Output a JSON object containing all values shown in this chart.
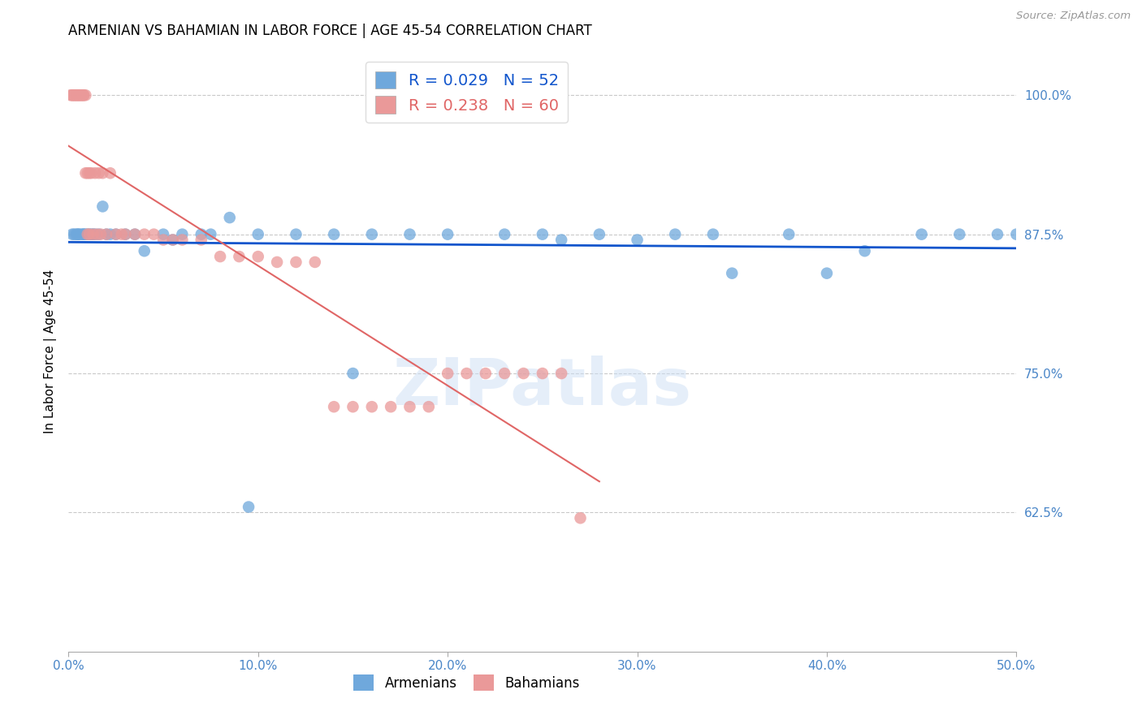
{
  "title": "ARMENIAN VS BAHAMIAN IN LABOR FORCE | AGE 45-54 CORRELATION CHART",
  "source": "Source: ZipAtlas.com",
  "ylabel": "In Labor Force | Age 45-54",
  "xlim": [
    0.0,
    0.5
  ],
  "ylim": [
    0.5,
    1.04
  ],
  "xtick_positions": [
    0.0,
    0.1,
    0.2,
    0.3,
    0.4,
    0.5
  ],
  "xtick_labels": [
    "0.0%",
    "10.0%",
    "20.0%",
    "30.0%",
    "40.0%",
    "50.0%"
  ],
  "ytick_positions": [
    0.625,
    0.75,
    0.875,
    1.0
  ],
  "ytick_labels": [
    "62.5%",
    "75.0%",
    "87.5%",
    "100.0%"
  ],
  "armenian_color": "#6fa8dc",
  "bahamian_color": "#ea9999",
  "armenian_line_color": "#1155cc",
  "bahamian_line_color": "#e06666",
  "R_armenian": 0.029,
  "N_armenian": 52,
  "R_bahamian": 0.238,
  "N_bahamian": 60,
  "legend_armenians": "Armenians",
  "legend_bahamians": "Bahamians",
  "watermark": "ZIPatlas",
  "title_fontsize": 12,
  "tick_label_color": "#4a86c8",
  "grid_color": "#bbbbbb",
  "marker_size": 110,
  "marker_alpha": 0.75,
  "arm_x": [
    0.002,
    0.003,
    0.004,
    0.005,
    0.005,
    0.006,
    0.007,
    0.008,
    0.008,
    0.009,
    0.01,
    0.011,
    0.012,
    0.013,
    0.014,
    0.016,
    0.018,
    0.02,
    0.022,
    0.025,
    0.03,
    0.035,
    0.04,
    0.05,
    0.06,
    0.07,
    0.085,
    0.1,
    0.12,
    0.14,
    0.16,
    0.18,
    0.2,
    0.23,
    0.26,
    0.3,
    0.34,
    0.38,
    0.42,
    0.45,
    0.47,
    0.49,
    0.5,
    0.32,
    0.28,
    0.35,
    0.4,
    0.15,
    0.25,
    0.055,
    0.075,
    0.095
  ],
  "arm_y": [
    0.875,
    0.875,
    0.875,
    0.875,
    0.875,
    0.875,
    0.875,
    0.875,
    0.875,
    0.875,
    0.875,
    0.875,
    0.875,
    0.875,
    0.875,
    0.875,
    0.9,
    0.875,
    0.875,
    0.875,
    0.875,
    0.875,
    0.86,
    0.875,
    0.875,
    0.875,
    0.89,
    0.875,
    0.875,
    0.875,
    0.875,
    0.875,
    0.875,
    0.875,
    0.87,
    0.87,
    0.875,
    0.875,
    0.86,
    0.875,
    0.875,
    0.875,
    0.875,
    0.875,
    0.875,
    0.84,
    0.84,
    0.75,
    0.875,
    0.87,
    0.875,
    0.63
  ],
  "bah_x": [
    0.001,
    0.002,
    0.002,
    0.003,
    0.003,
    0.004,
    0.004,
    0.005,
    0.005,
    0.006,
    0.006,
    0.007,
    0.007,
    0.008,
    0.008,
    0.009,
    0.009,
    0.01,
    0.01,
    0.011,
    0.011,
    0.012,
    0.013,
    0.014,
    0.015,
    0.016,
    0.017,
    0.018,
    0.02,
    0.022,
    0.025,
    0.028,
    0.03,
    0.035,
    0.04,
    0.045,
    0.05,
    0.055,
    0.06,
    0.07,
    0.08,
    0.09,
    0.1,
    0.11,
    0.12,
    0.13,
    0.14,
    0.15,
    0.16,
    0.17,
    0.18,
    0.19,
    0.2,
    0.21,
    0.22,
    0.23,
    0.24,
    0.25,
    0.26,
    0.27
  ],
  "bah_y": [
    1.0,
    1.0,
    1.0,
    1.0,
    1.0,
    1.0,
    1.0,
    1.0,
    1.0,
    1.0,
    1.0,
    1.0,
    1.0,
    1.0,
    1.0,
    1.0,
    0.93,
    0.93,
    0.875,
    0.93,
    0.875,
    0.93,
    0.875,
    0.93,
    0.875,
    0.93,
    0.875,
    0.93,
    0.875,
    0.93,
    0.875,
    0.875,
    0.875,
    0.875,
    0.875,
    0.875,
    0.87,
    0.87,
    0.87,
    0.87,
    0.855,
    0.855,
    0.855,
    0.85,
    0.85,
    0.85,
    0.72,
    0.72,
    0.72,
    0.72,
    0.72,
    0.72,
    0.75,
    0.75,
    0.75,
    0.75,
    0.75,
    0.75,
    0.75,
    0.62
  ]
}
